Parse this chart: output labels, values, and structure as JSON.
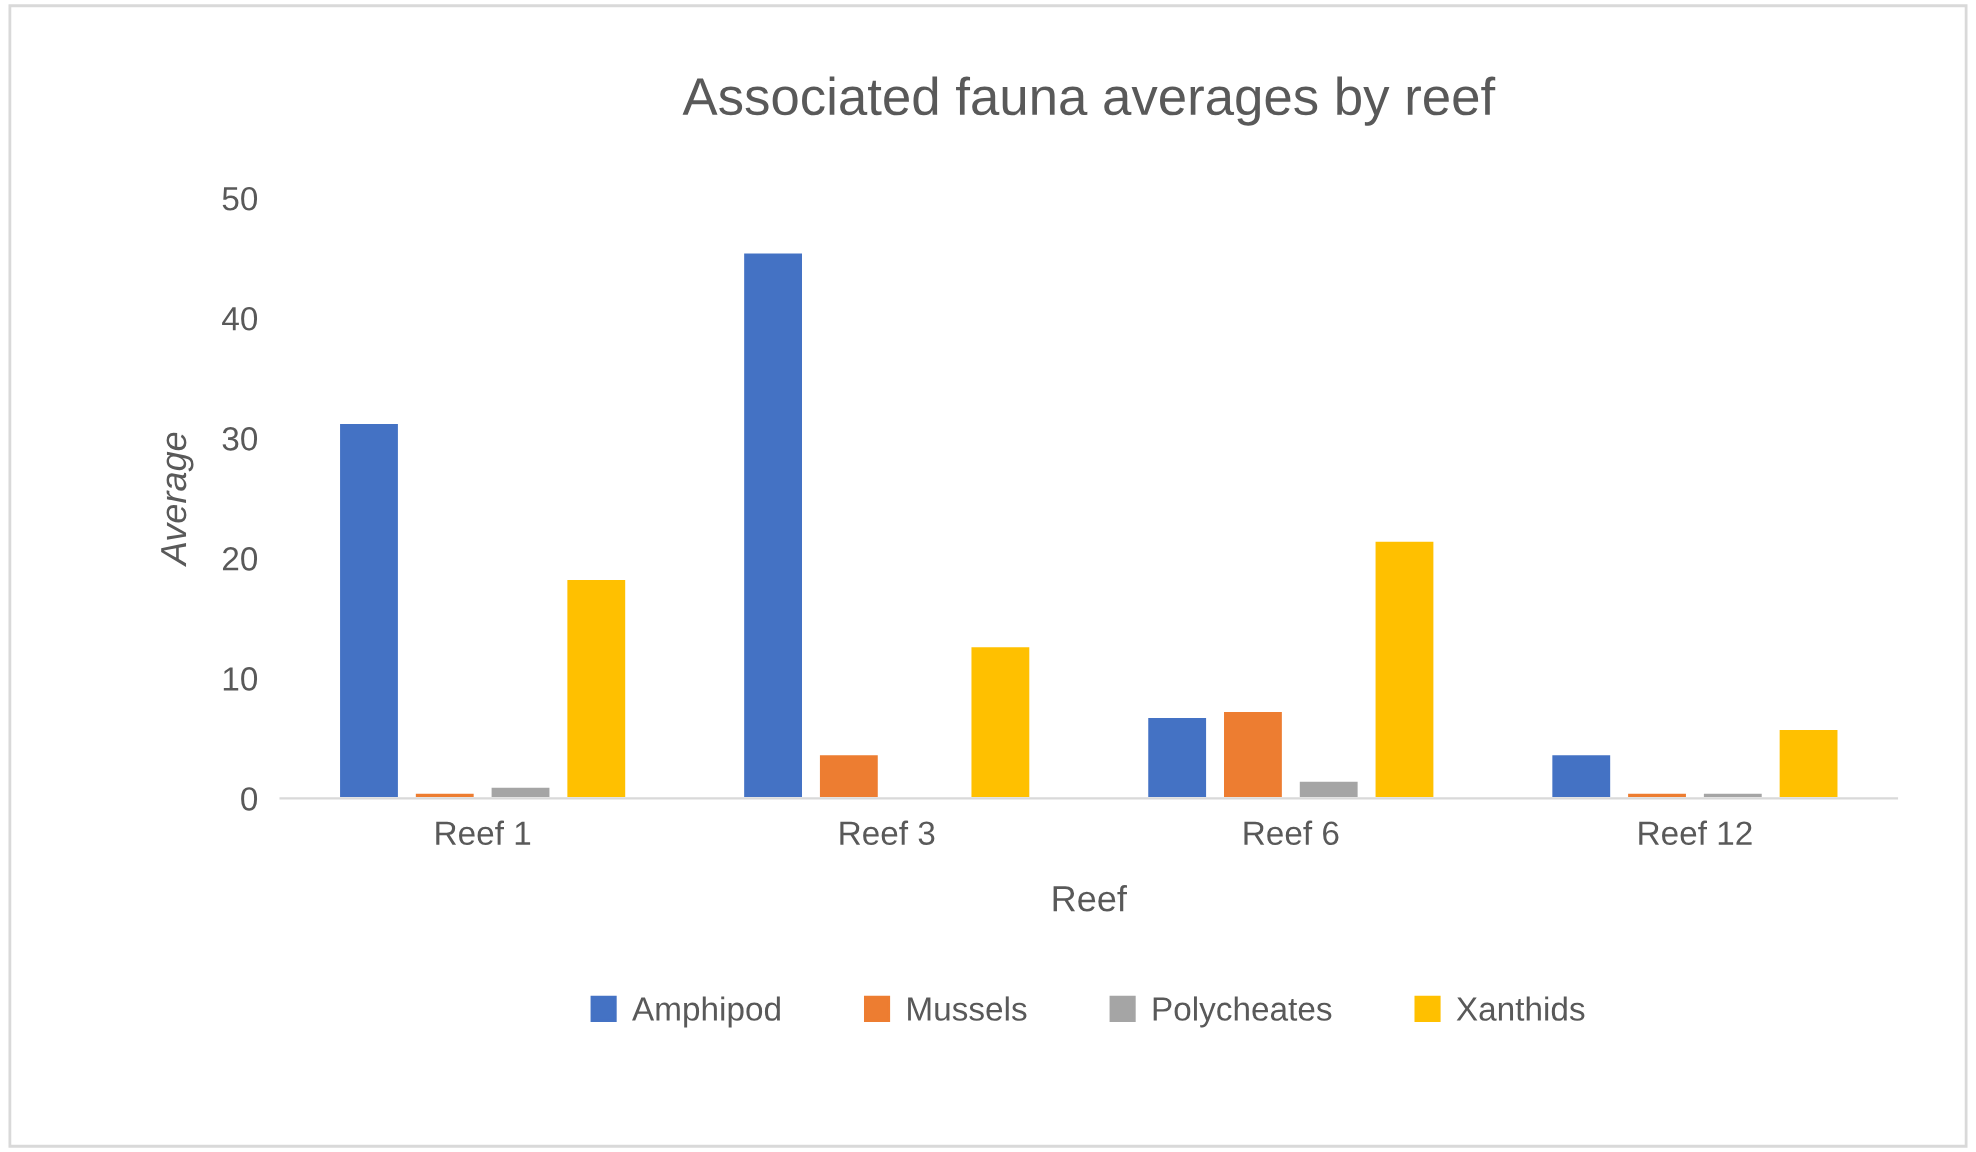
{
  "chart_data": {
    "type": "bar",
    "title": "Associated fauna averages by reef",
    "xlabel": "Reef",
    "ylabel": "Average",
    "categories": [
      "Reef 1",
      "Reef 3",
      "Reef 6",
      "Reef 12"
    ],
    "series": [
      {
        "name": "Amphipod",
        "color": "#4472c4",
        "values": [
          31.3,
          45.5,
          6.8,
          3.7
        ]
      },
      {
        "name": "Mussels",
        "color": "#ed7d31",
        "values": [
          0.5,
          3.7,
          7.3,
          0.5
        ]
      },
      {
        "name": "Polycheates",
        "color": "#a5a5a5",
        "values": [
          1.0,
          null,
          1.5,
          0.5
        ]
      },
      {
        "name": "Xanthids",
        "color": "#ffc000",
        "values": [
          18.3,
          12.7,
          21.5,
          5.8
        ]
      }
    ],
    "ylim": [
      0,
      50
    ],
    "yticks": [
      0,
      10,
      20,
      30,
      40,
      50
    ],
    "grid": false,
    "legend": "bottom"
  }
}
